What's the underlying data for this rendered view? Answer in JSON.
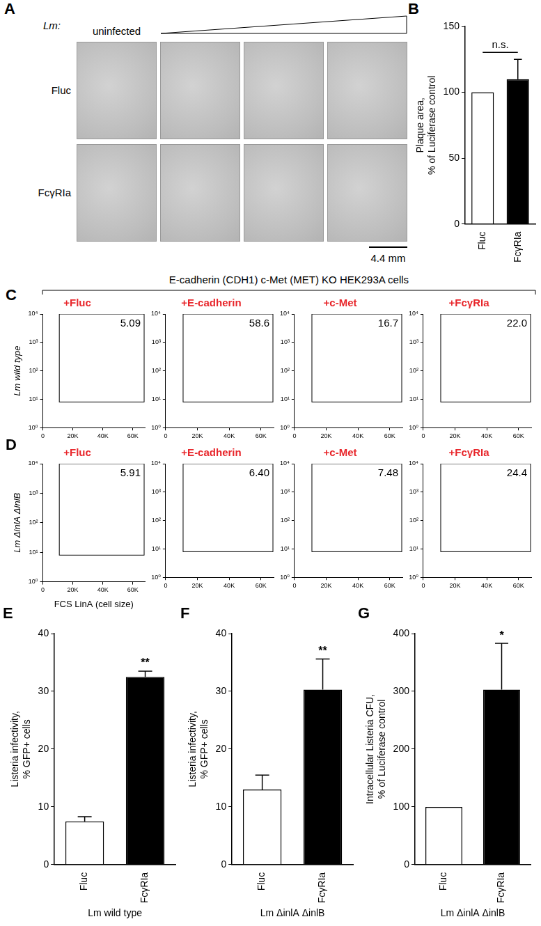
{
  "panel_A": {
    "label": "A",
    "lm_label": "Lm:",
    "column_header": "uninfected",
    "rows": [
      "Fluc",
      "FcγRIa"
    ],
    "scale_bar": "4.4 mm"
  },
  "panel_C_header": "E-cadherin (CDH1) c-Met (MET) KO HEK293A cells",
  "chart_data": [
    {
      "panel": "B",
      "type": "bar",
      "categories": [
        "Fluc",
        "FcγRIa"
      ],
      "values": [
        100,
        110
      ],
      "errors": [
        0,
        15
      ],
      "colors": [
        "#ffffff",
        "#000000"
      ],
      "ylabel": "Plaque area,\n% of Luciferase control",
      "ylim": [
        0,
        150
      ],
      "yticks": [
        0,
        50,
        100,
        150
      ],
      "grid": false,
      "annotation": {
        "text": "n.s.",
        "categories": [
          "Fluc",
          "FcγRIa"
        ]
      }
    },
    {
      "panel": "C",
      "type": "scatter",
      "title": "+Fluc",
      "ylabel": "Lm wild type",
      "xlim": [
        0,
        68000
      ],
      "xticks": [
        0,
        {
          "value": 20000,
          "label": "20K"
        },
        {
          "value": 40000,
          "label": "40K"
        },
        {
          "value": 60000,
          "label": "60K"
        }
      ],
      "ylim": [
        1,
        10000
      ],
      "yticks": [
        {
          "value": 1,
          "label": "10⁰"
        },
        {
          "value": 10,
          "label": "10¹"
        },
        {
          "value": 100,
          "label": "10²"
        },
        {
          "value": 1000,
          "label": "10³"
        },
        {
          "value": 10000,
          "label": "10⁴"
        }
      ],
      "log": "y",
      "grid": false,
      "gate": {
        "x": [
          11000,
          68000
        ],
        "y": [
          8,
          10000
        ]
      },
      "gate_percent": {
        "value": 5.09,
        "label": "5.09"
      }
    },
    {
      "type": "scatter",
      "title": "+E-cadherin",
      "xlim": [
        0,
        68000
      ],
      "xticks": [
        0,
        {
          "value": 20000,
          "label": "20K"
        },
        {
          "value": 40000,
          "label": "40K"
        },
        {
          "value": 60000,
          "label": "60K"
        }
      ],
      "ylim": [
        1,
        10000
      ],
      "yticks": [
        {
          "value": 1,
          "label": "10⁰"
        },
        {
          "value": 10,
          "label": "10¹"
        },
        {
          "value": 100,
          "label": "10²"
        },
        {
          "value": 1000,
          "label": "10³"
        },
        {
          "value": 10000,
          "label": "10⁴"
        }
      ],
      "log": "y",
      "grid": false,
      "gate": {
        "x": [
          11000,
          68000
        ],
        "y": [
          8,
          10000
        ]
      },
      "gate_percent": {
        "value": 58.6,
        "label": "58.6"
      }
    },
    {
      "type": "scatter",
      "title": "+c-Met",
      "xlim": [
        0,
        68000
      ],
      "xticks": [
        0,
        {
          "value": 20000,
          "label": "20K"
        },
        {
          "value": 40000,
          "label": "40K"
        },
        {
          "value": 60000,
          "label": "60K"
        }
      ],
      "ylim": [
        1,
        10000
      ],
      "yticks": [
        {
          "value": 1,
          "label": "10⁰"
        },
        {
          "value": 10,
          "label": "10¹"
        },
        {
          "value": 100,
          "label": "10²"
        },
        {
          "value": 1000,
          "label": "10³"
        },
        {
          "value": 10000,
          "label": "10⁴"
        }
      ],
      "log": "y",
      "grid": false,
      "gate": {
        "x": [
          11000,
          68000
        ],
        "y": [
          8,
          10000
        ]
      },
      "gate_percent": {
        "value": 16.7,
        "label": "16.7"
      }
    },
    {
      "type": "scatter",
      "title": "+FcγRIa",
      "xlim": [
        0,
        68000
      ],
      "xticks": [
        0,
        {
          "value": 20000,
          "label": "20K"
        },
        {
          "value": 40000,
          "label": "40K"
        },
        {
          "value": 60000,
          "label": "60K"
        }
      ],
      "ylim": [
        1,
        10000
      ],
      "yticks": [
        {
          "value": 1,
          "label": "10⁰"
        },
        {
          "value": 10,
          "label": "10¹"
        },
        {
          "value": 100,
          "label": "10²"
        },
        {
          "value": 1000,
          "label": "10³"
        },
        {
          "value": 10000,
          "label": "10⁴"
        }
      ],
      "log": "y",
      "grid": false,
      "gate": {
        "x": [
          11000,
          68000
        ],
        "y": [
          8,
          10000
        ]
      },
      "gate_percent": {
        "value": 22.0,
        "label": "22.0"
      }
    },
    {
      "panel": "D",
      "type": "scatter",
      "title": "+Fluc",
      "ylabel": "Lm ΔinlA ΔinlB",
      "xlabel": "FCS LinA (cell size)",
      "xlim": [
        0,
        68000
      ],
      "xticks": [
        0,
        {
          "value": 20000,
          "label": "20K"
        },
        {
          "value": 40000,
          "label": "40K"
        },
        {
          "value": 60000,
          "label": "60K"
        }
      ],
      "ylim": [
        1,
        10000
      ],
      "yticks": [
        {
          "value": 1,
          "label": "10⁰"
        },
        {
          "value": 10,
          "label": "10¹"
        },
        {
          "value": 100,
          "label": "10²"
        },
        {
          "value": 1000,
          "label": "10³"
        },
        {
          "value": 10000,
          "label": "10⁴"
        }
      ],
      "log": "y",
      "grid": false,
      "gate": {
        "x": [
          11000,
          68000
        ],
        "y": [
          8,
          10000
        ]
      },
      "gate_percent": {
        "value": 5.91,
        "label": "5.91"
      }
    },
    {
      "type": "scatter",
      "title": "+E-cadherin",
      "xlim": [
        0,
        68000
      ],
      "xticks": [
        0,
        {
          "value": 20000,
          "label": "20K"
        },
        {
          "value": 40000,
          "label": "40K"
        },
        {
          "value": 60000,
          "label": "60K"
        }
      ],
      "ylim": [
        1,
        10000
      ],
      "yticks": [
        {
          "value": 1,
          "label": "10⁰"
        },
        {
          "value": 10,
          "label": "10¹"
        },
        {
          "value": 100,
          "label": "10²"
        },
        {
          "value": 1000,
          "label": "10³"
        },
        {
          "value": 10000,
          "label": "10⁴"
        }
      ],
      "log": "y",
      "grid": false,
      "gate": {
        "x": [
          11000,
          68000
        ],
        "y": [
          8,
          10000
        ]
      },
      "gate_percent": {
        "value": 6.4,
        "label": "6.40"
      }
    },
    {
      "type": "scatter",
      "title": "+c-Met",
      "xlim": [
        0,
        68000
      ],
      "xticks": [
        0,
        {
          "value": 20000,
          "label": "20K"
        },
        {
          "value": 40000,
          "label": "40K"
        },
        {
          "value": 60000,
          "label": "60K"
        }
      ],
      "ylim": [
        1,
        10000
      ],
      "yticks": [
        {
          "value": 1,
          "label": "10⁰"
        },
        {
          "value": 10,
          "label": "10¹"
        },
        {
          "value": 100,
          "label": "10²"
        },
        {
          "value": 1000,
          "label": "10³"
        },
        {
          "value": 10000,
          "label": "10⁴"
        }
      ],
      "log": "y",
      "grid": false,
      "gate": {
        "x": [
          11000,
          68000
        ],
        "y": [
          8,
          10000
        ]
      },
      "gate_percent": {
        "value": 7.48,
        "label": "7.48"
      }
    },
    {
      "type": "scatter",
      "title": "+FcγRIa",
      "xlim": [
        0,
        68000
      ],
      "xticks": [
        0,
        {
          "value": 20000,
          "label": "20K"
        },
        {
          "value": 40000,
          "label": "40K"
        },
        {
          "value": 60000,
          "label": "60K"
        }
      ],
      "ylim": [
        1,
        10000
      ],
      "yticks": [
        {
          "value": 1,
          "label": "10⁰"
        },
        {
          "value": 10,
          "label": "10¹"
        },
        {
          "value": 100,
          "label": "10²"
        },
        {
          "value": 1000,
          "label": "10³"
        },
        {
          "value": 10000,
          "label": "10⁴"
        }
      ],
      "log": "y",
      "grid": false,
      "gate": {
        "x": [
          11000,
          68000
        ],
        "y": [
          8,
          10000
        ]
      },
      "gate_percent": {
        "value": 24.4,
        "label": "24.4"
      }
    },
    {
      "panel": "E",
      "type": "bar",
      "categories": [
        "Fluc",
        "FcγRIa"
      ],
      "values": [
        7.5,
        32.5
      ],
      "errors": [
        0.8,
        1.0
      ],
      "colors": [
        "#ffffff",
        "#000000"
      ],
      "ylabel": "Listeria infectivity,\n% GFP+ cells",
      "xlabel": "Lm wild type",
      "ylim": [
        0,
        40
      ],
      "yticks": [
        0,
        10,
        20,
        30,
        40
      ],
      "grid": false,
      "annotation": {
        "text": "**",
        "categories": [
          "FcγRIa"
        ]
      }
    },
    {
      "panel": "F",
      "type": "bar",
      "categories": [
        "Fluc",
        "FcγRIa"
      ],
      "values": [
        13,
        30.3
      ],
      "errors": [
        2.5,
        5.3
      ],
      "colors": [
        "#ffffff",
        "#000000"
      ],
      "ylabel": "Listeria infectivity,\n% GFP+ cells",
      "xlabel": "Lm ΔinlA ΔinlB",
      "ylim": [
        0,
        40
      ],
      "yticks": [
        0,
        10,
        20,
        30,
        40
      ],
      "grid": false,
      "annotation": {
        "text": "**",
        "categories": [
          "FcγRIa"
        ]
      }
    },
    {
      "panel": "G",
      "type": "bar",
      "categories": [
        "Fluc",
        "FcγRIa"
      ],
      "values": [
        100,
        303
      ],
      "errors": [
        0,
        80
      ],
      "colors": [
        "#ffffff",
        "#000000"
      ],
      "ylabel": "Intracellular Listeria CFU,\n% of Luciferase control",
      "xlabel": "Lm ΔinlA ΔinlB",
      "ylim": [
        0,
        400
      ],
      "yticks": [
        0,
        100,
        200,
        300,
        400
      ],
      "grid": false,
      "annotation": {
        "text": "*",
        "categories": [
          "FcγRIa"
        ]
      }
    }
  ]
}
